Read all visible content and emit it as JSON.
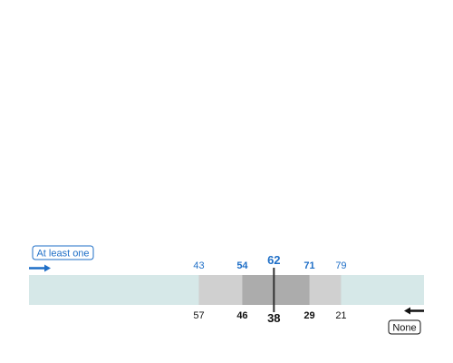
{
  "colors": {
    "top_accent": "#1f6fc7",
    "bottom_accent": "#111111",
    "track": "#d6e8e8",
    "outer_band": "#d0d0d0",
    "inner_band": "#acacac",
    "median_line": "#333333"
  },
  "legend": {
    "top_label": "At least one",
    "top_icon": "right-arrow-icon",
    "bottom_label": "None",
    "bottom_icon": "left-arrow-icon"
  },
  "chart_data": {
    "type": "range-band",
    "axis": {
      "min": 0,
      "max": 100,
      "direction": "top-increasing-left-to-right"
    },
    "top_scale": {
      "label": "At least one",
      "outer_low": 43,
      "inner_low": 54,
      "median": 62,
      "inner_high": 71,
      "outer_high": 79
    },
    "bottom_scale": {
      "label": "None",
      "outer_low": 57,
      "inner_low": 46,
      "median": 38,
      "inner_high": 29,
      "outer_high": 21
    }
  }
}
